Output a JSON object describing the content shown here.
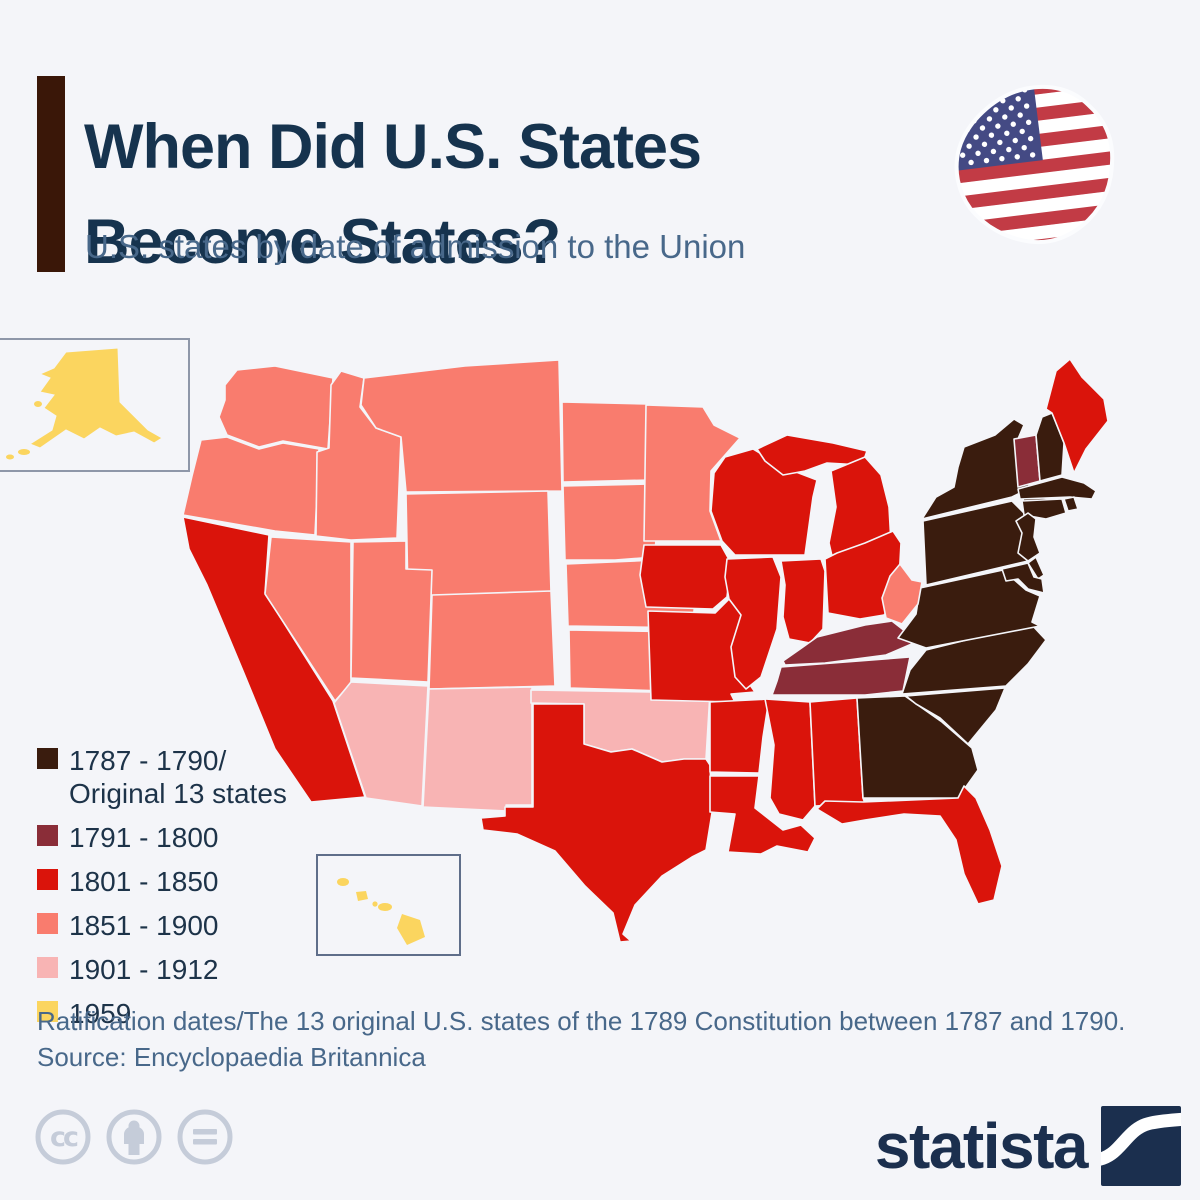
{
  "page": {
    "background_color": "#f4f5f9"
  },
  "header": {
    "title": "When Did U.S. States Become States?",
    "subtitle": "U.S. states by date of admission to the Union",
    "accent_bar_color": "#3a1708",
    "title_color": "#16334e",
    "subtitle_color": "#48688a"
  },
  "flag_icon": {
    "stripe_red": "#c23b45",
    "canton_blue": "#444a84",
    "star_white": "#ffffff"
  },
  "chart_data": {
    "type": "choropleth_map",
    "title": "U.S. states by date of admission to the Union",
    "legend_position": "left-bottom",
    "categories": [
      {
        "key": "1787_1790",
        "label": "1787 - 1790/",
        "label2": "Original 13 states",
        "color": "#3a1c0e"
      },
      {
        "key": "1791_1800",
        "label": "1791 - 1800",
        "label2": "",
        "color": "#8a2d38"
      },
      {
        "key": "1801_1850",
        "label": "1801 - 1850",
        "label2": "",
        "color": "#da140b"
      },
      {
        "key": "1851_1900",
        "label": "1851 - 1900",
        "label2": "",
        "color": "#f97c6e"
      },
      {
        "key": "1901_1912",
        "label": "1901 - 1912",
        "label2": "",
        "color": "#f8b4b4"
      },
      {
        "key": "1959",
        "label": "1959",
        "label2": "",
        "color": "#fbd55f"
      }
    ],
    "state_categories": {
      "AL": "1801_1850",
      "AK": "1959",
      "AZ": "1901_1912",
      "AR": "1801_1850",
      "CA": "1801_1850",
      "CO": "1851_1900",
      "CT": "1787_1790",
      "DE": "1787_1790",
      "FL": "1801_1850",
      "GA": "1787_1790",
      "HI": "1959",
      "ID": "1851_1900",
      "IL": "1801_1850",
      "IN": "1801_1850",
      "IA": "1801_1850",
      "KS": "1851_1900",
      "KY": "1791_1800",
      "LA": "1801_1850",
      "ME": "1801_1850",
      "MD": "1787_1790",
      "MA": "1787_1790",
      "MI": "1801_1850",
      "MN": "1851_1900",
      "MS": "1801_1850",
      "MO": "1801_1850",
      "MT": "1851_1900",
      "NE": "1851_1900",
      "NV": "1851_1900",
      "NH": "1787_1790",
      "NJ": "1787_1790",
      "NM": "1901_1912",
      "NY": "1787_1790",
      "NC": "1787_1790",
      "ND": "1851_1900",
      "OH": "1801_1850",
      "OK": "1901_1912",
      "OR": "1851_1900",
      "PA": "1787_1790",
      "RI": "1787_1790",
      "SC": "1787_1790",
      "SD": "1851_1900",
      "TN": "1791_1800",
      "TX": "1801_1850",
      "UT": "1851_1900",
      "VT": "1791_1800",
      "VA": "1787_1790",
      "WA": "1851_1900",
      "WV": "1851_1900",
      "WI": "1801_1850",
      "WY": "1851_1900"
    }
  },
  "footnote": "Ratification dates/The 13 original U.S. states of the 1789 Constitution between 1787 and 1790.",
  "source": "Source: Encyclopaedia Britannica",
  "branding": {
    "logo_text": "statista",
    "logo_color": "#1b2f4e"
  },
  "license": {
    "color": "#c5ccd9"
  },
  "insets": {
    "alaska_border": "#8e97a9",
    "hawaii_border": "#5f6e8a"
  }
}
